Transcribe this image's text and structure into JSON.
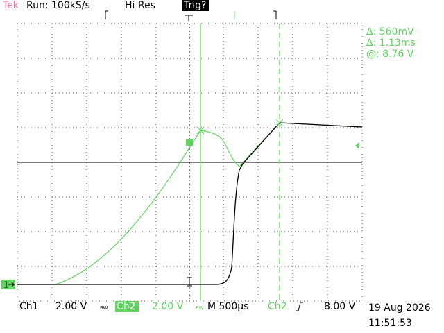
{
  "header": {
    "brand": "Tek",
    "acquisition": "Run: 100kS/s",
    "mode": "Hi Res",
    "trigger_status": "Trig?"
  },
  "cursor_readout": {
    "delta_v": "Δ: 560mV",
    "delta_t": "Δ: 1.13ms",
    "at": "@: 8.76 V"
  },
  "markers": {
    "ch1": "1"
  },
  "footer": {
    "ch1_label": "Ch1",
    "ch1_scale": "2.00 V",
    "ch1_bw": "BW",
    "ch2_label": "Ch2",
    "ch2_scale": "2.00 V",
    "ch2_bw": "BW",
    "timebase": "M 500µs",
    "trigger_source": "Ch2",
    "trigger_level": "8.00 V",
    "date": "19 Aug 2026",
    "time": "11:51:53"
  }
}
